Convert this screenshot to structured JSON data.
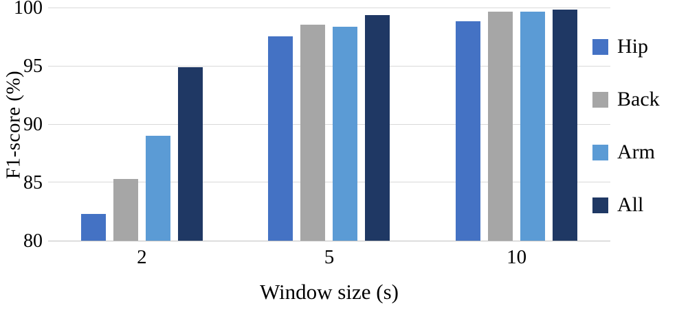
{
  "chart_data": {
    "type": "bar",
    "xlabel": "Window size (s)",
    "ylabel": "F1-score (%)",
    "ylim": [
      80,
      100
    ],
    "yticks": [
      80,
      85,
      90,
      95,
      100
    ],
    "categories": [
      "2",
      "5",
      "10"
    ],
    "series": [
      {
        "name": "Hip",
        "color": "#4472c4",
        "values": [
          82.3,
          97.6,
          98.9
        ]
      },
      {
        "name": "Back",
        "color": "#a6a6a6",
        "values": [
          85.3,
          98.6,
          99.7
        ]
      },
      {
        "name": "Arm",
        "color": "#5b9bd5",
        "values": [
          89.0,
          98.4,
          99.7
        ]
      },
      {
        "name": "All",
        "color": "#1f3864",
        "values": [
          94.9,
          99.4,
          99.9
        ]
      }
    ],
    "grid": "horizontal",
    "legend_position": "right",
    "colors": {
      "gridline": "#d9d9d9",
      "axis_line": "#bfbfbf",
      "text": "#000000",
      "background": "#ffffff"
    }
  }
}
